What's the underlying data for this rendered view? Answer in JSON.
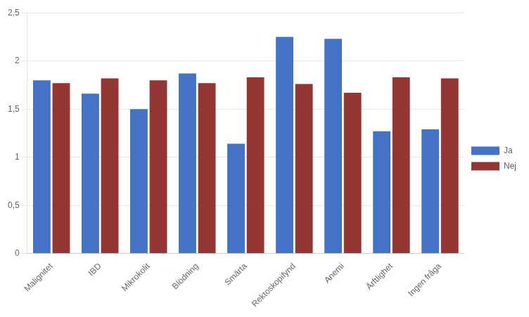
{
  "chart_data": {
    "type": "bar",
    "categories": [
      "Malignitet",
      "IBD",
      "Mikrokolit",
      "Blödning",
      "Smärta",
      "Rektoskopifynd",
      "Anemi",
      "Ärftlighet",
      "Ingen fråga"
    ],
    "series": [
      {
        "name": "Ja",
        "color": "#4472C4",
        "values": [
          1.8,
          1.66,
          1.5,
          1.87,
          1.14,
          2.25,
          2.23,
          1.27,
          1.29
        ]
      },
      {
        "name": "Nej",
        "color": "#943634",
        "values": [
          1.77,
          1.82,
          1.8,
          1.77,
          1.83,
          1.76,
          1.67,
          1.83,
          1.82
        ]
      }
    ],
    "ylim": [
      0,
      2.5
    ],
    "yticks": [
      0,
      {
        "value": 0.5,
        "label": "0,5"
      },
      1,
      {
        "value": 1.5,
        "label": "1,5"
      },
      2,
      {
        "value": 2.5,
        "label": "2,5"
      }
    ],
    "grid": true,
    "legend": "right"
  }
}
